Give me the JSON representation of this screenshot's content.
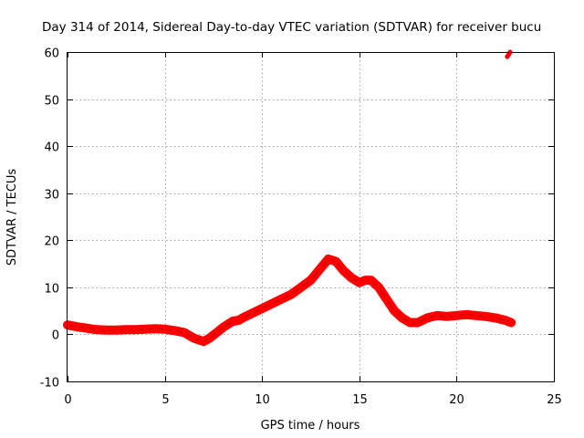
{
  "chart_data": {
    "type": "line",
    "title": "Day 314 of 2014, Sidereal Day-to-day VTEC variation (SDTVAR) for receiver bucu",
    "xlabel": "GPS time / hours",
    "ylabel": "SDTVAR / TECUs",
    "xlim": [
      0,
      25
    ],
    "ylim": [
      -10,
      60
    ],
    "xticks": [
      0,
      5,
      10,
      15,
      20,
      25
    ],
    "yticks": [
      -10,
      0,
      10,
      20,
      30,
      40,
      50,
      60
    ],
    "xtick_labels": [
      "0",
      "5",
      "10",
      "15",
      "20",
      "25"
    ],
    "ytick_labels": [
      "-10",
      "0",
      "10",
      "20",
      "30",
      "40",
      "50",
      "60"
    ],
    "grid": true,
    "series": [
      {
        "name": "SDTVAR",
        "color": "#ff0000",
        "x": [
          0.0,
          0.5,
          1.0,
          1.5,
          2.0,
          2.5,
          3.0,
          3.5,
          4.0,
          4.5,
          5.0,
          5.5,
          6.0,
          6.5,
          7.0,
          7.3,
          7.7,
          8.0,
          8.5,
          8.8,
          9.0,
          9.5,
          10.0,
          10.5,
          11.0,
          11.5,
          12.0,
          12.5,
          13.0,
          13.4,
          13.8,
          14.2,
          14.6,
          15.0,
          15.3,
          15.6,
          16.0,
          16.4,
          16.8,
          17.2,
          17.6,
          18.0,
          18.5,
          19.0,
          19.5,
          20.0,
          20.5,
          21.0,
          21.5,
          22.0,
          22.5,
          22.8
        ],
        "y": [
          2.0,
          1.6,
          1.3,
          1.0,
          0.9,
          0.9,
          1.0,
          1.0,
          1.1,
          1.2,
          1.1,
          0.8,
          0.4,
          -0.8,
          -1.5,
          -0.8,
          0.5,
          1.5,
          2.8,
          3.0,
          3.5,
          4.5,
          5.5,
          6.5,
          7.5,
          8.5,
          10.0,
          11.5,
          14.0,
          16.0,
          15.5,
          13.5,
          12.0,
          11.0,
          11.5,
          11.5,
          10.0,
          7.5,
          5.0,
          3.5,
          2.5,
          2.5,
          3.5,
          4.0,
          3.8,
          4.0,
          4.2,
          4.0,
          3.8,
          3.5,
          3.0,
          2.5
        ],
        "outliers": {
          "x": [
            22.6,
            22.65,
            22.7,
            22.75
          ],
          "y": [
            59.0,
            59.3,
            59.6,
            60.0
          ]
        }
      }
    ]
  }
}
